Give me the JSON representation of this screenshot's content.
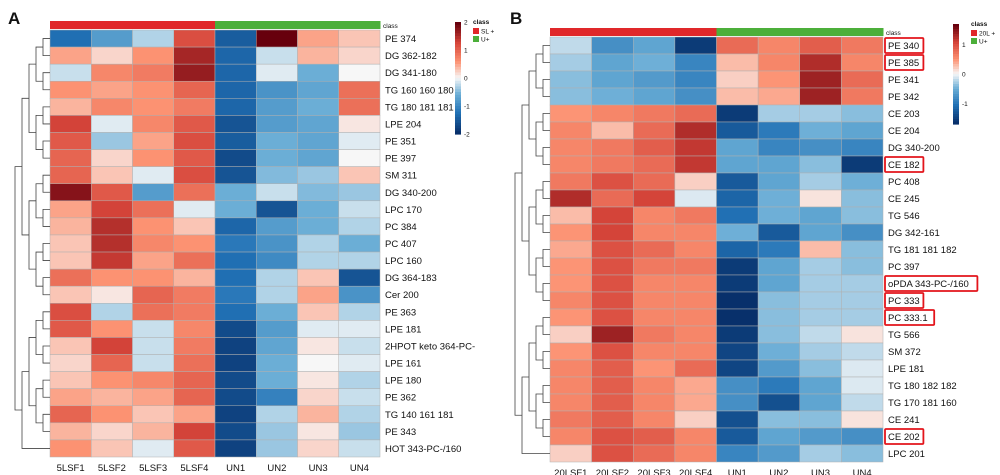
{
  "chart_data": [
    {
      "type": "heatmap",
      "panel_label": "A",
      "class_header": "class",
      "legend": {
        "title": "class",
        "entries": [
          {
            "label": "SL +",
            "color": "#e0282a"
          },
          {
            "label": "U+",
            "color": "#4caf3a"
          }
        ],
        "scale_ticks": [
          "2",
          "1",
          "0",
          "-1",
          "-2"
        ],
        "range": [
          -2,
          2
        ]
      },
      "columns": [
        "5LSF1",
        "5LSF2",
        "5LSF3",
        "5LSF4",
        "UN1",
        "UN2",
        "UN3",
        "UN4"
      ],
      "column_classes": [
        "SL +",
        "SL +",
        "SL +",
        "SL +",
        "U+",
        "U+",
        "U+",
        "U+"
      ],
      "rows": [
        "PE 374",
        "DG 362-182",
        "DG 341-180",
        "TG 160 160 180",
        "TG 180 181 181",
        "LPE 204",
        "PE 351",
        "PE 397",
        "SM 311",
        "DG 340-200",
        "LPC 170",
        "PC 384",
        "PC 407",
        "LPC 160",
        "DG 364-183",
        "Cer 200",
        "PE 363",
        "LPE 181",
        "2HPOT keto 364-PC-",
        "LPE 161",
        "LPE 180",
        "PE 362",
        "TG 140 161 181",
        "PE 343",
        "HOT 343-PC-/160"
      ],
      "values": [
        [
          -1.3,
          -0.8,
          -0.3,
          1.2,
          -1.5,
          2.0,
          0.5,
          0.3
        ],
        [
          0.5,
          0.2,
          0.6,
          1.6,
          -1.4,
          -0.2,
          0.4,
          0.2
        ],
        [
          -0.2,
          0.7,
          0.8,
          1.7,
          -1.4,
          -0.1,
          -0.6,
          0.0
        ],
        [
          0.6,
          0.5,
          0.6,
          1.0,
          -1.4,
          -0.9,
          -0.7,
          0.9
        ],
        [
          0.4,
          0.7,
          0.6,
          0.8,
          -1.4,
          -0.8,
          -0.6,
          0.9
        ],
        [
          1.3,
          -0.1,
          0.7,
          1.1,
          -1.6,
          -0.8,
          -0.7,
          0.1
        ],
        [
          1.1,
          -0.4,
          0.5,
          1.2,
          -1.5,
          -0.6,
          -0.7,
          -0.1
        ],
        [
          1.0,
          0.2,
          0.6,
          1.1,
          -1.7,
          -0.6,
          -0.7,
          0.0
        ],
        [
          1.0,
          0.3,
          -0.1,
          1.2,
          -1.6,
          -0.5,
          -0.4,
          0.3
        ],
        [
          1.8,
          1.1,
          -0.8,
          0.9,
          -0.6,
          -0.2,
          -0.5,
          -0.4
        ],
        [
          0.5,
          1.3,
          0.9,
          -0.1,
          -0.6,
          -1.6,
          -0.6,
          -0.2
        ],
        [
          0.4,
          1.5,
          0.6,
          0.3,
          -1.4,
          -0.8,
          -0.6,
          -0.3
        ],
        [
          0.3,
          1.5,
          0.7,
          0.6,
          -1.2,
          -0.9,
          -0.3,
          -0.6
        ],
        [
          0.3,
          1.4,
          0.5,
          0.9,
          -1.3,
          -1.0,
          -0.3,
          -0.3
        ],
        [
          0.9,
          0.6,
          0.6,
          0.4,
          -1.3,
          -0.3,
          0.3,
          -1.6
        ],
        [
          0.3,
          0.1,
          1.0,
          0.8,
          -1.2,
          -0.3,
          0.5,
          -0.9
        ],
        [
          1.2,
          -0.3,
          0.9,
          0.8,
          -1.3,
          -0.6,
          0.3,
          -0.3
        ],
        [
          1.1,
          0.6,
          -0.2,
          0.7,
          -1.7,
          -0.8,
          -0.1,
          -0.1
        ],
        [
          0.3,
          1.3,
          -0.2,
          0.8,
          -1.8,
          -0.7,
          0.1,
          -0.2
        ],
        [
          0.2,
          1.0,
          -0.2,
          0.9,
          -1.8,
          -0.6,
          0.0,
          -0.1
        ],
        [
          0.3,
          0.6,
          0.7,
          1.0,
          -1.7,
          -0.6,
          0.1,
          -0.3
        ],
        [
          0.5,
          0.4,
          0.5,
          1.0,
          -1.7,
          -1.1,
          0.2,
          -0.2
        ],
        [
          1.0,
          0.6,
          0.3,
          0.5,
          -1.8,
          -0.3,
          0.4,
          -0.3
        ],
        [
          0.4,
          0.2,
          0.4,
          1.3,
          -1.7,
          -0.4,
          0.1,
          -0.4
        ],
        [
          0.6,
          0.3,
          -0.1,
          1.1,
          -1.8,
          -0.4,
          0.2,
          -0.2
        ]
      ]
    },
    {
      "type": "heatmap",
      "panel_label": "B",
      "class_header": "class",
      "legend": {
        "title": "class",
        "entries": [
          {
            "label": "20L +",
            "color": "#e0282a"
          },
          {
            "label": "U+",
            "color": "#4caf3a"
          }
        ],
        "scale_ticks": [
          "1",
          "0",
          "-1"
        ],
        "range": [
          -1.7,
          1.7
        ]
      },
      "columns": [
        "20LSF1",
        "20LSF2",
        "20LSF3",
        "20LSF4",
        "UN1",
        "UN2",
        "UN3",
        "UN4"
      ],
      "column_classes": [
        "20L +",
        "20L +",
        "20L +",
        "20L +",
        "U+",
        "U+",
        "U+",
        "U+"
      ],
      "rows": [
        "PE 340",
        "PE 385",
        "PE 341",
        "PE 342",
        "CE 203",
        "CE 204",
        "DG 340-200",
        "CE 182",
        "PC 408",
        "CE 245",
        "TG 546",
        "DG 342-161",
        "TG 181 181 182",
        "PC 397",
        "oPDA 343-PC-/160",
        "PC 333",
        "PC 333.1",
        "TG 566",
        "SM 372",
        "LPE 181",
        "TG 180 182 182",
        "TG 170 181 160",
        "CE 241",
        "CE 202",
        "LPC 201"
      ],
      "highlighted_rows": [
        "PE 340",
        "PE 385",
        "CE 182",
        "oPDA 343-PC-/160",
        "PC 333",
        "PC 333.1",
        "CE 202"
      ],
      "values": [
        [
          -0.2,
          -0.8,
          -0.6,
          -1.6,
          0.8,
          0.6,
          0.9,
          0.7
        ],
        [
          -0.3,
          -0.6,
          -0.5,
          -0.9,
          0.3,
          0.6,
          1.3,
          0.6
        ],
        [
          -0.4,
          -0.6,
          -0.7,
          -0.9,
          0.2,
          0.5,
          1.4,
          0.8
        ],
        [
          -0.4,
          -0.5,
          -0.6,
          -0.8,
          0.3,
          0.4,
          1.4,
          0.7
        ],
        [
          0.5,
          0.6,
          0.7,
          0.8,
          -1.6,
          -0.3,
          -0.3,
          -0.4
        ],
        [
          0.6,
          0.3,
          0.8,
          1.3,
          -1.3,
          -1.0,
          -0.5,
          -0.6
        ],
        [
          0.6,
          0.7,
          0.9,
          1.2,
          -0.6,
          -0.9,
          -0.8,
          -0.9
        ],
        [
          0.6,
          0.7,
          0.8,
          1.2,
          -0.6,
          -0.6,
          -0.4,
          -1.6
        ],
        [
          0.7,
          1.0,
          0.8,
          0.2,
          -1.3,
          -0.6,
          -0.3,
          -0.5
        ],
        [
          1.3,
          0.8,
          1.1,
          -0.1,
          -1.2,
          -0.5,
          0.1,
          -0.4
        ],
        [
          0.3,
          1.1,
          0.6,
          0.7,
          -1.1,
          -0.5,
          -0.6,
          -0.4
        ],
        [
          0.5,
          1.1,
          0.6,
          0.6,
          -0.5,
          -1.3,
          -0.6,
          -0.8
        ],
        [
          0.4,
          1.0,
          0.8,
          0.6,
          -1.2,
          -1.0,
          0.3,
          -0.4
        ],
        [
          0.5,
          1.0,
          0.7,
          0.7,
          -1.6,
          -0.6,
          -0.3,
          -0.4
        ],
        [
          0.5,
          1.0,
          0.6,
          0.6,
          -1.6,
          -0.6,
          -0.3,
          -0.3
        ],
        [
          0.6,
          1.0,
          0.6,
          0.6,
          -1.7,
          -0.4,
          -0.3,
          -0.3
        ],
        [
          0.5,
          1.0,
          0.6,
          0.6,
          -1.7,
          -0.4,
          -0.3,
          -0.3
        ],
        [
          0.2,
          1.4,
          0.7,
          0.6,
          -1.6,
          -0.4,
          -0.2,
          0.1
        ],
        [
          0.5,
          1.0,
          0.6,
          0.6,
          -1.5,
          -0.5,
          -0.3,
          -0.2
        ],
        [
          0.6,
          0.9,
          0.5,
          0.8,
          -1.5,
          -0.7,
          -0.4,
          -0.1
        ],
        [
          0.6,
          0.9,
          0.6,
          0.4,
          -0.8,
          -1.0,
          -0.6,
          -0.1
        ],
        [
          0.6,
          0.9,
          0.6,
          0.4,
          -0.8,
          -1.4,
          -0.6,
          -0.2
        ],
        [
          0.7,
          0.9,
          0.6,
          0.2,
          -1.4,
          -0.4,
          -0.4,
          0.1
        ],
        [
          0.6,
          1.0,
          0.9,
          0.6,
          -1.3,
          -0.6,
          -0.7,
          -0.8
        ],
        [
          0.2,
          1.0,
          0.8,
          0.6,
          -0.9,
          -0.7,
          -0.3,
          -0.4
        ]
      ]
    }
  ]
}
